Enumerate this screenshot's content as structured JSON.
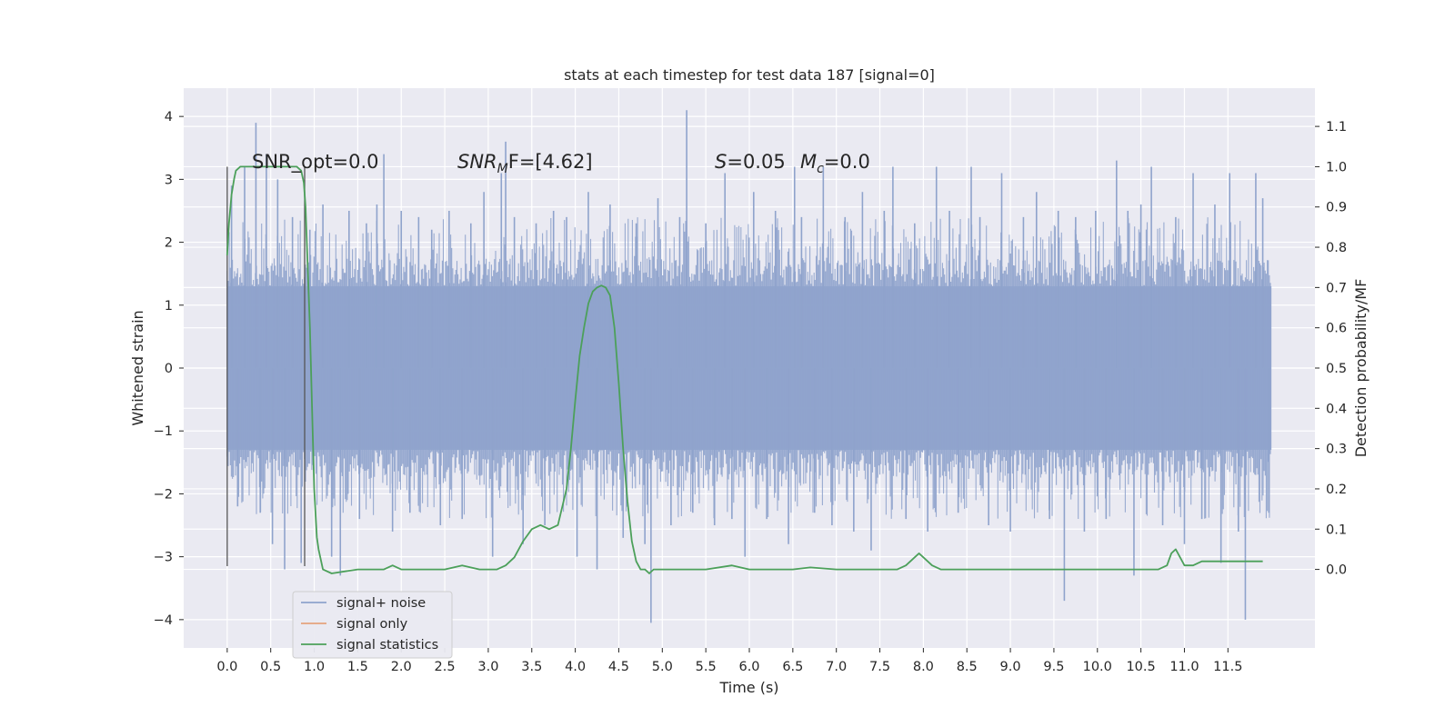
{
  "chart_data": {
    "type": "line",
    "title": "stats at each timestep for test data 187 [signal=0]",
    "xlabel": "Time (s)",
    "ylabel": "Whitened strain",
    "y2label": "Detection probability/MF",
    "xlim": [
      -0.5,
      12.5
    ],
    "ylim": [
      -4.45,
      4.45
    ],
    "y2lim": [
      -0.195,
      1.195
    ],
    "xticks": [
      "0.0",
      "0.5",
      "1.0",
      "1.5",
      "2.0",
      "2.5",
      "3.0",
      "3.5",
      "4.0",
      "4.5",
      "5.0",
      "5.5",
      "6.0",
      "6.5",
      "7.0",
      "7.5",
      "8.0",
      "8.5",
      "9.0",
      "9.5",
      "10.0",
      "10.5",
      "11.0",
      "11.5"
    ],
    "yticks": [
      "4",
      "3",
      "2",
      "1",
      "0",
      "−1",
      "−2",
      "−3",
      "−4"
    ],
    "y2ticks": [
      "1.1",
      "1.0",
      "0.9",
      "0.8",
      "0.7",
      "0.6",
      "0.5",
      "0.4",
      "0.3",
      "0.2",
      "0.1",
      "0.0"
    ],
    "grid": true,
    "legend_position": "lower-left",
    "annotations": {
      "snr_opt": "SNR_opt=0.0",
      "snr_mf_sym": "SNR",
      "snr_mf_sub": "M",
      "snr_mf_rest": "F=[4.62]",
      "s_sym": "S",
      "s_rest": "=0.05",
      "mc_sym": "M",
      "mc_sub": "c",
      "mc_rest": "=0.0"
    },
    "vertical_markers_x": [
      0.0,
      0.89
    ],
    "series": [
      {
        "name": "signal+ noise",
        "color": "#8fa3cc",
        "x_range": [
          0.0,
          12.0
        ],
        "band_y": [
          -1.3,
          1.3
        ],
        "spikes": [
          [
            0.05,
            2.9
          ],
          [
            0.12,
            -2.2
          ],
          [
            0.2,
            3.2
          ],
          [
            0.33,
            3.9
          ],
          [
            0.38,
            -2.3
          ],
          [
            0.45,
            3.4
          ],
          [
            0.52,
            -2.8
          ],
          [
            0.58,
            3.0
          ],
          [
            0.66,
            -3.2
          ],
          [
            0.75,
            2.4
          ],
          [
            0.85,
            -3.1
          ],
          [
            0.95,
            2.2
          ],
          [
            1.1,
            2.6
          ],
          [
            1.2,
            -3.0
          ],
          [
            1.3,
            -3.3
          ],
          [
            1.4,
            2.5
          ],
          [
            1.52,
            -2.4
          ],
          [
            1.6,
            2.3
          ],
          [
            1.72,
            2.6
          ],
          [
            1.8,
            3.4
          ],
          [
            1.9,
            -2.6
          ],
          [
            2.0,
            2.5
          ],
          [
            2.1,
            -2.3
          ],
          [
            2.2,
            2.4
          ],
          [
            2.35,
            2.2
          ],
          [
            2.45,
            -2.5
          ],
          [
            2.55,
            2.5
          ],
          [
            2.7,
            -2.4
          ],
          [
            2.8,
            2.3
          ],
          [
            2.95,
            2.8
          ],
          [
            3.05,
            -3.0
          ],
          [
            3.15,
            3.1
          ],
          [
            3.2,
            3.6
          ],
          [
            3.3,
            2.4
          ],
          [
            3.4,
            -2.8
          ],
          [
            3.55,
            2.3
          ],
          [
            3.65,
            -2.5
          ],
          [
            3.75,
            2.5
          ],
          [
            3.9,
            2.4
          ],
          [
            4.02,
            -3.0
          ],
          [
            4.15,
            2.8
          ],
          [
            4.25,
            -3.2
          ],
          [
            4.4,
            2.6
          ],
          [
            4.55,
            -2.7
          ],
          [
            4.7,
            2.3
          ],
          [
            4.8,
            -2.8
          ],
          [
            4.87,
            -4.05
          ],
          [
            4.95,
            2.7
          ],
          [
            5.1,
            -2.5
          ],
          [
            5.2,
            2.4
          ],
          [
            5.28,
            4.1
          ],
          [
            5.35,
            -2.3
          ],
          [
            5.5,
            2.3
          ],
          [
            5.6,
            -2.5
          ],
          [
            5.72,
            3.1
          ],
          [
            5.8,
            -2.4
          ],
          [
            5.95,
            -3.0
          ],
          [
            6.05,
            2.8
          ],
          [
            6.2,
            -2.4
          ],
          [
            6.3,
            2.5
          ],
          [
            6.45,
            -2.8
          ],
          [
            6.52,
            3.2
          ],
          [
            6.6,
            2.4
          ],
          [
            6.75,
            -2.3
          ],
          [
            6.85,
            3.2
          ],
          [
            6.95,
            -2.5
          ],
          [
            7.1,
            2.4
          ],
          [
            7.2,
            -2.6
          ],
          [
            7.3,
            2.8
          ],
          [
            7.4,
            -2.9
          ],
          [
            7.55,
            2.5
          ],
          [
            7.65,
            3.2
          ],
          [
            7.8,
            -2.4
          ],
          [
            7.9,
            2.3
          ],
          [
            8.05,
            -2.6
          ],
          [
            8.15,
            3.2
          ],
          [
            8.3,
            2.5
          ],
          [
            8.4,
            -2.3
          ],
          [
            8.55,
            3.2
          ],
          [
            8.65,
            2.4
          ],
          [
            8.75,
            -2.5
          ],
          [
            8.9,
            3.1
          ],
          [
            9.0,
            -2.6
          ],
          [
            9.15,
            2.4
          ],
          [
            9.3,
            2.8
          ],
          [
            9.45,
            -2.4
          ],
          [
            9.55,
            2.5
          ],
          [
            9.62,
            -3.7
          ],
          [
            9.75,
            2.4
          ],
          [
            9.85,
            -2.6
          ],
          [
            9.98,
            2.5
          ],
          [
            10.1,
            -2.4
          ],
          [
            10.22,
            3.3
          ],
          [
            10.35,
            2.5
          ],
          [
            10.42,
            -3.3
          ],
          [
            10.5,
            2.6
          ],
          [
            10.62,
            3.2
          ],
          [
            10.75,
            -2.5
          ],
          [
            10.9,
            2.4
          ],
          [
            11.0,
            -2.8
          ],
          [
            11.1,
            3.1
          ],
          [
            11.2,
            -2.4
          ],
          [
            11.35,
            2.6
          ],
          [
            11.42,
            -3.1
          ],
          [
            11.52,
            3.1
          ],
          [
            11.62,
            -2.6
          ],
          [
            11.7,
            -4.0
          ],
          [
            11.82,
            3.1
          ],
          [
            11.9,
            2.7
          ],
          [
            11.97,
            -2.3
          ]
        ]
      },
      {
        "name": "signal only",
        "color": "#e5a37e",
        "x": [],
        "y": []
      },
      {
        "name": "signal statistics",
        "color": "#4ca05a",
        "axis": "right",
        "x": [
          0.0,
          0.02,
          0.05,
          0.08,
          0.1,
          0.15,
          0.2,
          0.3,
          0.4,
          0.5,
          0.6,
          0.7,
          0.8,
          0.85,
          0.88,
          0.9,
          0.95,
          1.0,
          1.03,
          1.05,
          1.1,
          1.2,
          1.5,
          1.8,
          1.9,
          2.0,
          2.2,
          2.5,
          2.7,
          2.9,
          3.1,
          3.2,
          3.3,
          3.4,
          3.5,
          3.6,
          3.7,
          3.8,
          3.9,
          3.95,
          4.0,
          4.05,
          4.1,
          4.15,
          4.2,
          4.25,
          4.3,
          4.35,
          4.4,
          4.45,
          4.5,
          4.55,
          4.6,
          4.65,
          4.7,
          4.75,
          4.8,
          4.85,
          4.9,
          5.0,
          5.5,
          5.8,
          6.0,
          6.5,
          6.7,
          7.0,
          7.5,
          7.7,
          7.8,
          7.9,
          7.95,
          8.0,
          8.1,
          8.2,
          8.5,
          9.0,
          9.5,
          10.0,
          10.5,
          10.7,
          10.8,
          10.85,
          10.9,
          10.95,
          11.0,
          11.1,
          11.2,
          11.3,
          11.4,
          11.5,
          11.6,
          11.7,
          11.8,
          11.9
        ],
        "y": [
          0.78,
          0.86,
          0.93,
          0.97,
          0.99,
          1.0,
          1.0,
          1.0,
          1.0,
          1.0,
          1.0,
          1.0,
          1.0,
          0.99,
          0.96,
          0.9,
          0.6,
          0.2,
          0.08,
          0.05,
          0.0,
          -0.01,
          0.0,
          0.0,
          0.01,
          0.0,
          0.0,
          0.0,
          0.01,
          0.0,
          0.0,
          0.01,
          0.03,
          0.07,
          0.1,
          0.11,
          0.1,
          0.11,
          0.2,
          0.3,
          0.42,
          0.53,
          0.6,
          0.66,
          0.69,
          0.7,
          0.705,
          0.7,
          0.68,
          0.6,
          0.46,
          0.3,
          0.17,
          0.07,
          0.02,
          0.0,
          0.0,
          -0.01,
          0.0,
          0.0,
          0.0,
          0.01,
          0.0,
          0.0,
          0.005,
          0.0,
          0.0,
          0.0,
          0.01,
          0.03,
          0.04,
          0.03,
          0.01,
          0.0,
          0.0,
          0.0,
          0.0,
          0.0,
          0.0,
          0.0,
          0.01,
          0.04,
          0.05,
          0.03,
          0.01,
          0.01,
          0.02,
          0.02,
          0.02,
          0.02,
          0.02,
          0.02,
          0.02,
          0.02
        ]
      }
    ]
  }
}
